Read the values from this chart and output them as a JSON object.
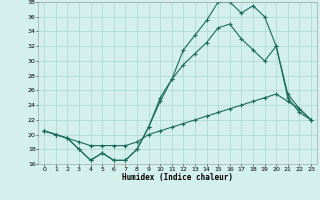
{
  "xlabel": "Humidex (Indice chaleur)",
  "background_color": "#d4f0ec",
  "grid_color": "#a8d8d0",
  "line_color": "#1a6b5a",
  "x_values": [
    0,
    1,
    2,
    3,
    4,
    5,
    6,
    7,
    8,
    9,
    10,
    11,
    12,
    13,
    14,
    15,
    16,
    17,
    18,
    19,
    20,
    21,
    22,
    23
  ],
  "line1_y": [
    20.5,
    20.0,
    19.5,
    18.0,
    16.5,
    17.5,
    16.5,
    16.5,
    18.0,
    21.0,
    25.0,
    27.5,
    31.5,
    33.5,
    35.5,
    38.0,
    38.0,
    36.5,
    37.5,
    36.0,
    32.0,
    25.0,
    23.0,
    22.0
  ],
  "line2_y": [
    20.5,
    20.0,
    19.5,
    18.0,
    16.5,
    17.5,
    16.5,
    16.5,
    18.0,
    21.0,
    24.5,
    27.5,
    29.5,
    31.0,
    32.5,
    34.5,
    35.0,
    33.0,
    31.5,
    30.0,
    32.0,
    25.5,
    23.5,
    22.0
  ],
  "line3_y": [
    20.5,
    20.0,
    19.5,
    19.0,
    18.5,
    18.5,
    18.5,
    18.5,
    19.0,
    20.0,
    20.5,
    21.0,
    21.5,
    22.0,
    22.5,
    23.0,
    23.5,
    24.0,
    24.5,
    25.0,
    25.5,
    24.5,
    23.5,
    22.0
  ],
  "ylim": [
    16,
    38
  ],
  "xlim": [
    -0.5,
    23.5
  ],
  "yticks": [
    16,
    18,
    20,
    22,
    24,
    26,
    28,
    30,
    32,
    34,
    36,
    38
  ],
  "xticks": [
    0,
    1,
    2,
    3,
    4,
    5,
    6,
    7,
    8,
    9,
    10,
    11,
    12,
    13,
    14,
    15,
    16,
    17,
    18,
    19,
    20,
    21,
    22,
    23
  ]
}
